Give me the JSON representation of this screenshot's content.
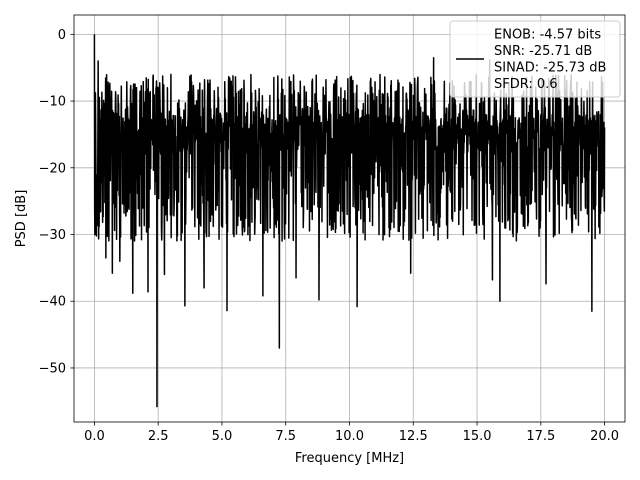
{
  "chart_data": {
    "type": "line",
    "xlabel": "Frequency [MHz]",
    "ylabel": "PSD [dB]",
    "xlim": [
      -0.8,
      20.8
    ],
    "ylim": [
      -58.1,
      2.9
    ],
    "xticks": [
      0.0,
      2.5,
      5.0,
      7.5,
      10.0,
      12.5,
      15.0,
      17.5,
      20.0
    ],
    "xtick_labels": [
      "0.0",
      "2.5",
      "5.0",
      "7.5",
      "10.0",
      "12.5",
      "15.0",
      "17.5",
      "20.0"
    ],
    "yticks": [
      0,
      -10,
      -20,
      -30,
      -40,
      -50
    ],
    "ytick_labels": [
      "0",
      "−10",
      "−20",
      "−30",
      "−40",
      "−50"
    ],
    "grid": true,
    "legend_position": "top-right",
    "series": [
      {
        "label_lines": [
          "ENOB: -4.57 bits",
          "SNR: -25.71 dB",
          "SINAD: -25.73 dB",
          "SFDR: 0.6"
        ],
        "color": "#000000",
        "x_start": 0.0,
        "x_end": 20.0,
        "points": 2048,
        "noise_floor": -15,
        "typical_range": [
          -27,
          -5
        ],
        "peaks": [
          {
            "x": 0.0,
            "y": 0.0
          },
          {
            "x": 0.15,
            "y": -4.0
          },
          {
            "x": 3.0,
            "y": -6.0
          },
          {
            "x": 13.3,
            "y": -3.5
          },
          {
            "x": 15.5,
            "y": -3.8
          }
        ],
        "dips": [
          {
            "x": 0.45,
            "y": -33.5
          },
          {
            "x": 0.7,
            "y": -35.8
          },
          {
            "x": 1.0,
            "y": -34.0
          },
          {
            "x": 1.5,
            "y": -38.8
          },
          {
            "x": 2.1,
            "y": -38.6
          },
          {
            "x": 2.45,
            "y": -55.8
          },
          {
            "x": 2.75,
            "y": -36.0
          },
          {
            "x": 3.55,
            "y": -40.7
          },
          {
            "x": 4.3,
            "y": -38.0
          },
          {
            "x": 5.2,
            "y": -41.4
          },
          {
            "x": 6.6,
            "y": -39.2
          },
          {
            "x": 7.25,
            "y": -47.0
          },
          {
            "x": 7.9,
            "y": -36.5
          },
          {
            "x": 8.8,
            "y": -39.8
          },
          {
            "x": 10.3,
            "y": -40.8
          },
          {
            "x": 12.4,
            "y": -35.8
          },
          {
            "x": 15.6,
            "y": -36.8
          },
          {
            "x": 15.9,
            "y": -40.0
          },
          {
            "x": 17.7,
            "y": -37.4
          },
          {
            "x": 19.5,
            "y": -41.5
          }
        ]
      }
    ]
  }
}
